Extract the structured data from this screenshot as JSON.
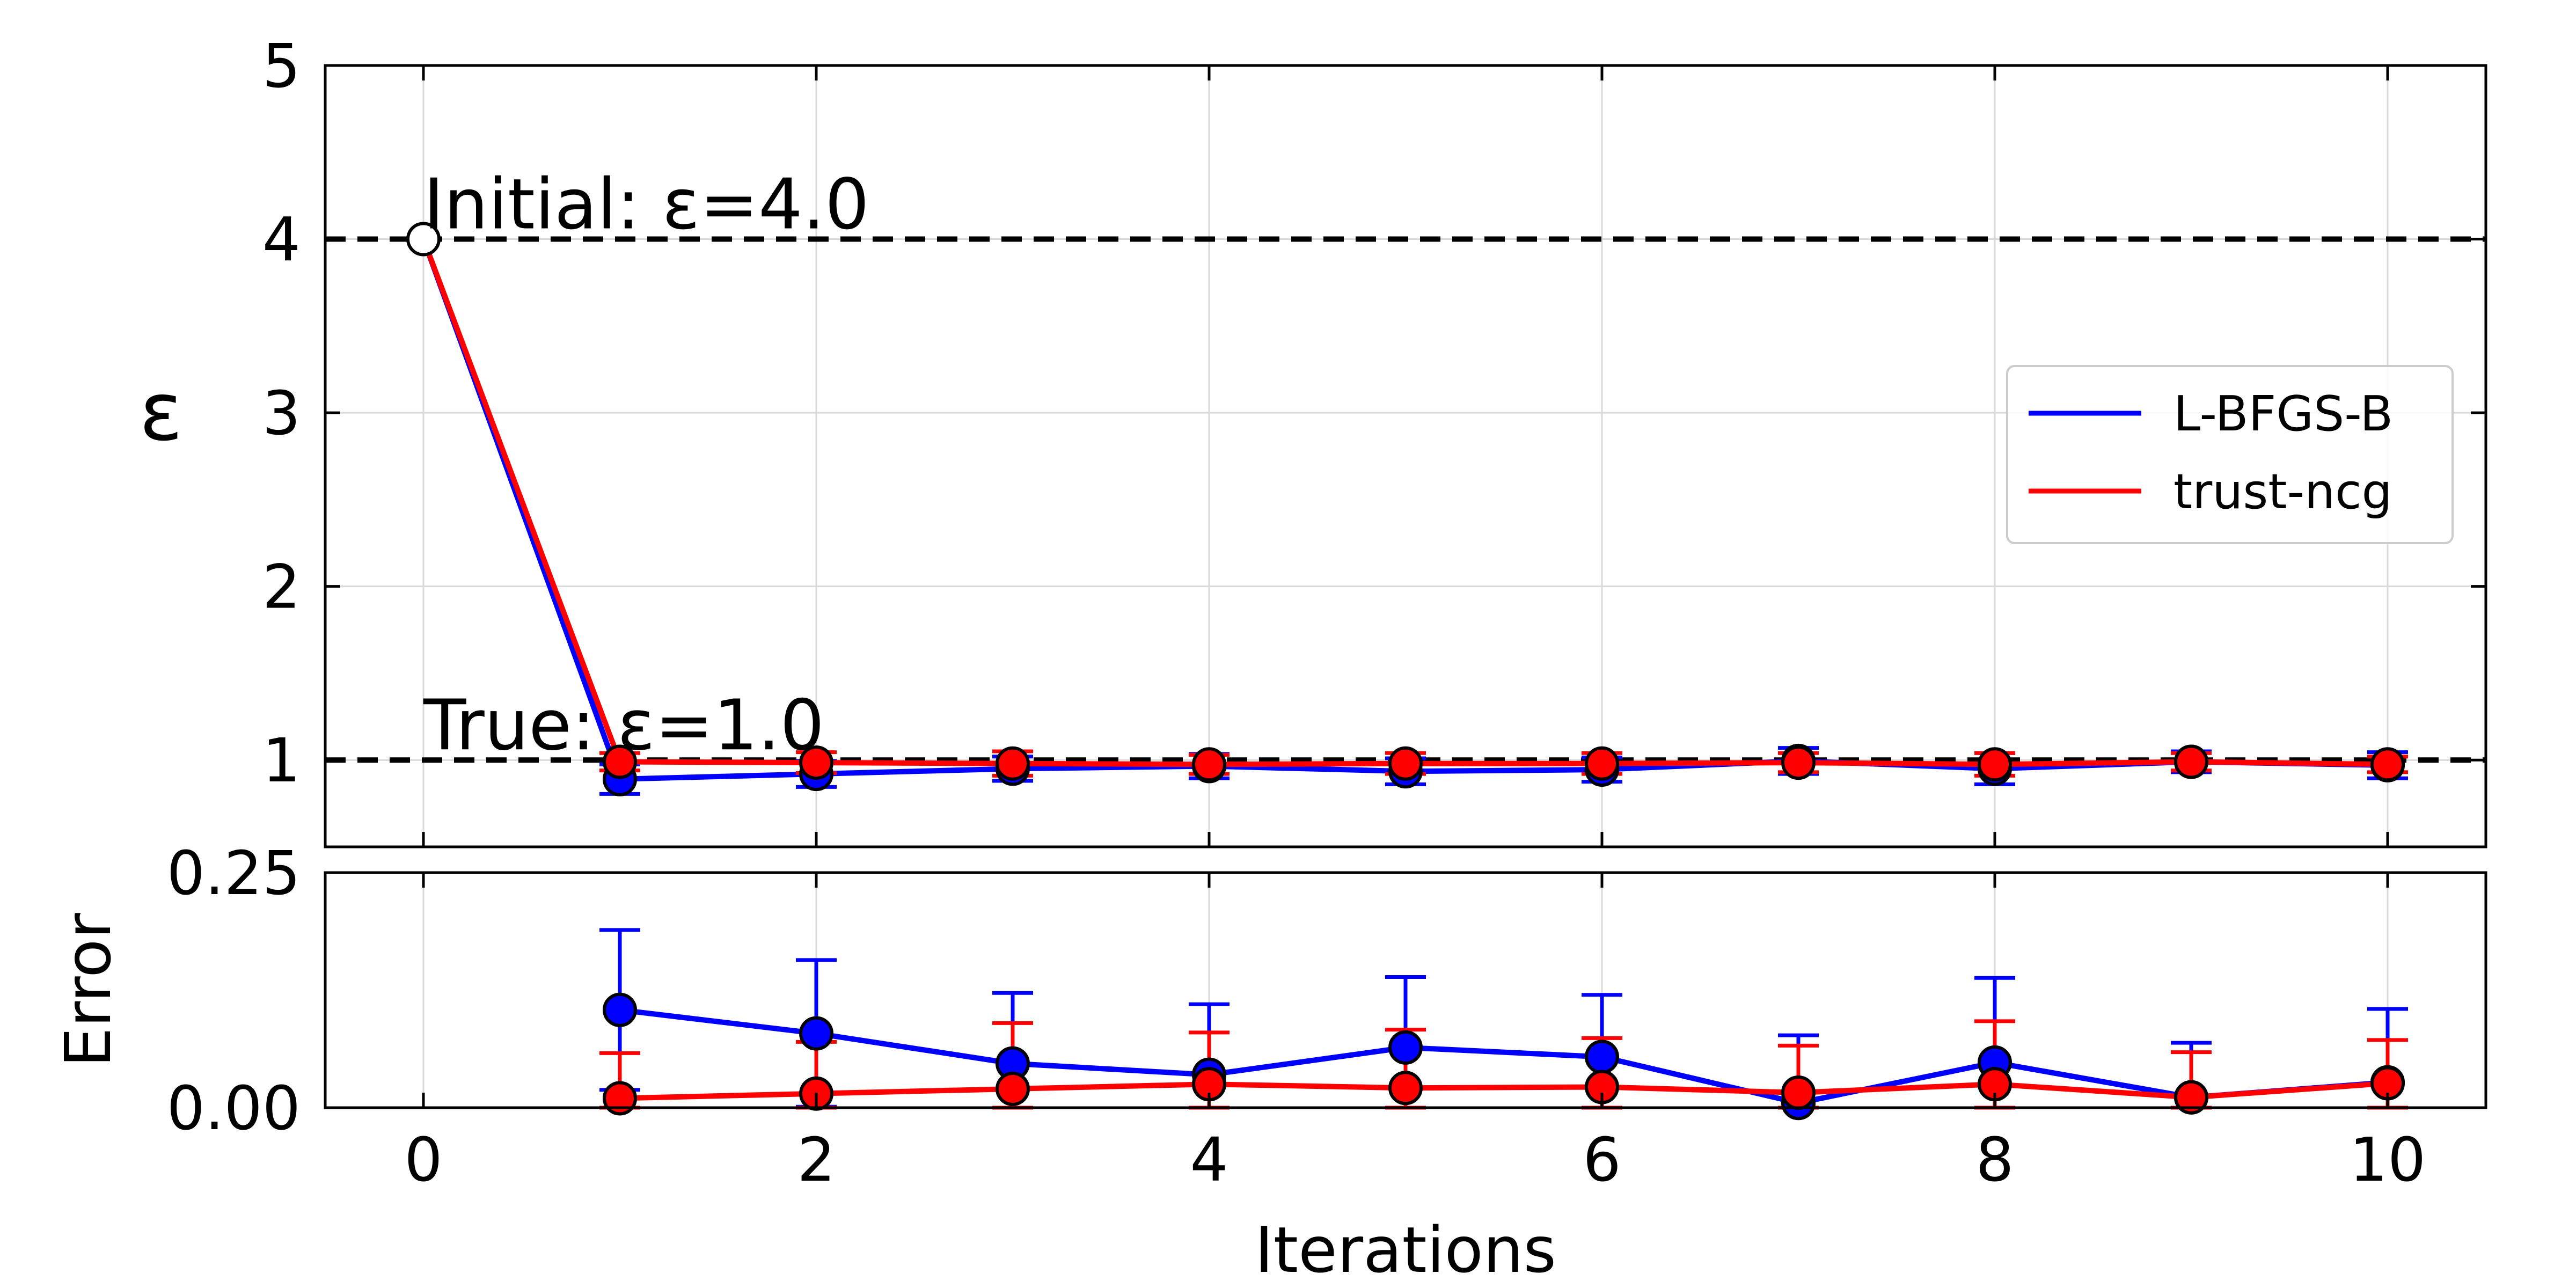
{
  "chart_data": [
    {
      "type": "line",
      "panel": "top",
      "title": "",
      "xlabel": "",
      "ylabel": "ε",
      "xlim": [
        -0.5,
        10.5
      ],
      "ylim": [
        0.5,
        5
      ],
      "x_ticks": [
        0,
        2,
        4,
        6,
        8,
        10
      ],
      "y_ticks": [
        1,
        2,
        3,
        4,
        5
      ],
      "x_tick_labels_visible": false,
      "grid": true,
      "legend_position": "center-right",
      "x": [
        1,
        2,
        3,
        4,
        5,
        6,
        7,
        8,
        9,
        10
      ],
      "series": [
        {
          "name": "L-BFGS-B",
          "color": "#0000ff",
          "values": [
            0.89,
            0.92,
            0.95,
            0.965,
            0.935,
            0.945,
            0.995,
            0.95,
            0.99,
            0.97
          ],
          "error": [
            0.085,
            0.075,
            0.07,
            0.07,
            0.075,
            0.07,
            0.075,
            0.09,
            0.06,
            0.075
          ]
        },
        {
          "name": "trust-ncg",
          "color": "#ff0000",
          "values": [
            0.99,
            0.985,
            0.98,
            0.975,
            0.98,
            0.98,
            0.985,
            0.975,
            0.99,
            0.975
          ],
          "error": [
            0.05,
            0.06,
            0.07,
            0.055,
            0.06,
            0.06,
            0.055,
            0.065,
            0.05,
            0.045
          ]
        }
      ],
      "initial_point": {
        "x": 0,
        "y": 4.0
      },
      "reference_lines": [
        {
          "y": 4.0,
          "label": "Initial: ε=4.0",
          "style": "dashed"
        },
        {
          "y": 1.0,
          "label": "True: ε=1.0",
          "style": "dashed"
        }
      ]
    },
    {
      "type": "line",
      "panel": "bottom",
      "title": "",
      "xlabel": "Iterations",
      "ylabel": "Error",
      "xlim": [
        -0.5,
        10.5
      ],
      "ylim": [
        0,
        0.25
      ],
      "x_ticks": [
        0,
        2,
        4,
        6,
        8,
        10
      ],
      "y_ticks": [
        0.0,
        0.25
      ],
      "y_tick_labels": [
        "0.00",
        "0.25"
      ],
      "grid": true,
      "x": [
        1,
        2,
        3,
        4,
        5,
        6,
        7,
        8,
        9,
        10
      ],
      "series": [
        {
          "name": "L-BFGS-B",
          "color": "#0000ff",
          "values": [
            0.104,
            0.079,
            0.047,
            0.035,
            0.064,
            0.054,
            0.005,
            0.048,
            0.011,
            0.027
          ],
          "error": [
            0.085,
            0.078,
            0.075,
            0.075,
            0.075,
            0.066,
            0.072,
            0.09,
            0.058,
            0.078
          ]
        },
        {
          "name": "trust-ncg",
          "color": "#ff0000",
          "values": [
            0.01,
            0.015,
            0.02,
            0.025,
            0.021,
            0.022,
            0.016,
            0.025,
            0.011,
            0.026
          ],
          "error": [
            0.048,
            0.055,
            0.07,
            0.055,
            0.062,
            0.052,
            0.05,
            0.067,
            0.048,
            0.046
          ]
        }
      ]
    }
  ]
}
